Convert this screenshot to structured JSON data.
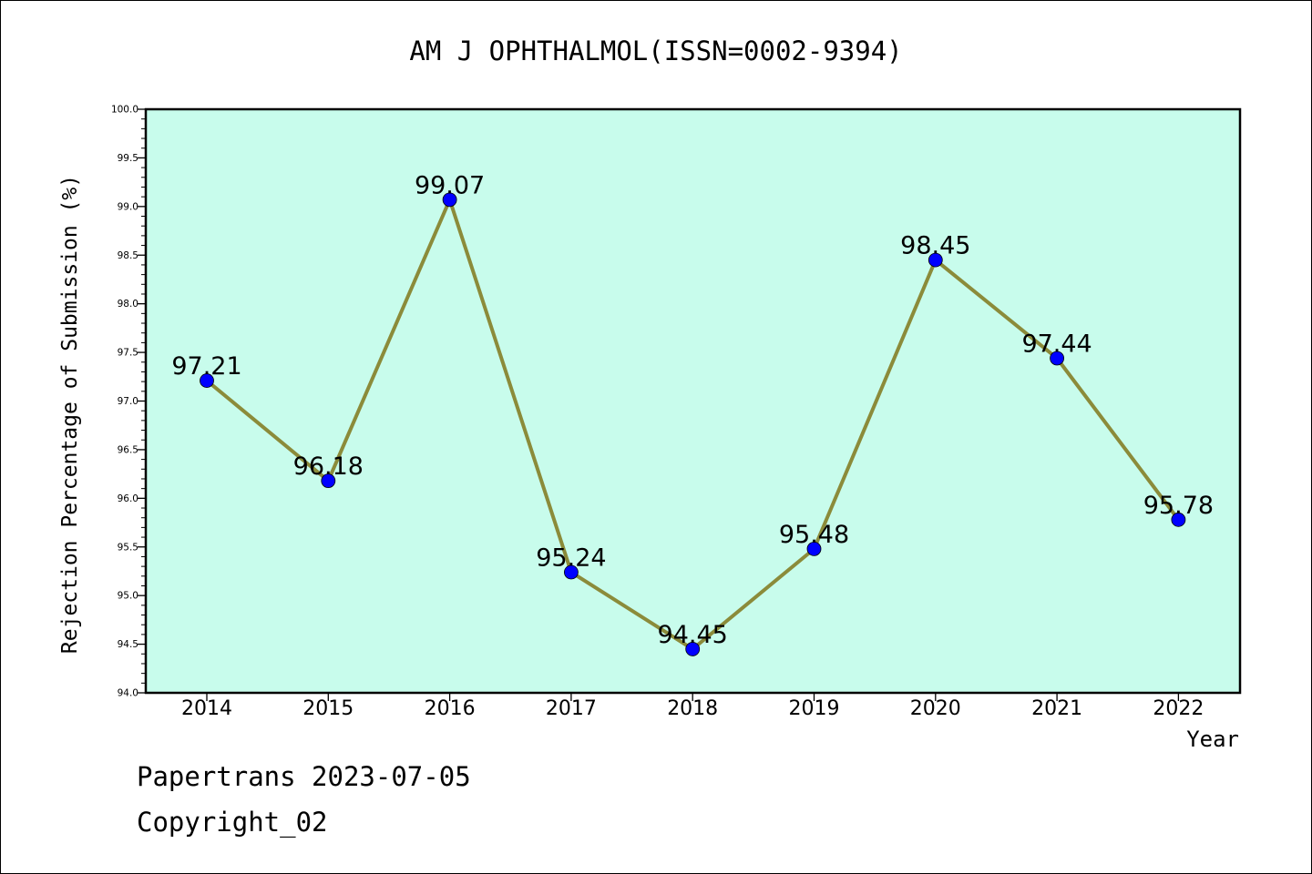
{
  "chart_data": {
    "type": "line",
    "title": "AM J OPHTHALMOL(ISSN=0002-9394)",
    "xlabel": "Year",
    "ylabel": "Rejection Percentage of Submission (%)",
    "categories": [
      "2014",
      "2015",
      "2016",
      "2017",
      "2018",
      "2019",
      "2020",
      "2021",
      "2022"
    ],
    "values": [
      97.21,
      96.18,
      99.07,
      95.24,
      94.45,
      95.48,
      98.45,
      97.44,
      95.78
    ],
    "data_labels": [
      "97.21",
      "96.18",
      "99.07",
      "95.24",
      "94.45",
      "95.48",
      "98.45",
      "97.44",
      "95.78"
    ],
    "ylim": [
      94.0,
      100.0
    ],
    "yticks": [
      "94.0",
      "94.5",
      "95.0",
      "95.5",
      "96.0",
      "96.5",
      "97.0",
      "97.5",
      "98.0",
      "98.5",
      "99.0",
      "99.5",
      "100.0"
    ],
    "grid": false,
    "colors": {
      "plot_background": "#c8fcec",
      "line": "#8b8b3a",
      "marker": "#0000ff"
    }
  },
  "footer": {
    "line1": "Papertrans 2023-07-05",
    "line2": "Copyright_02"
  }
}
